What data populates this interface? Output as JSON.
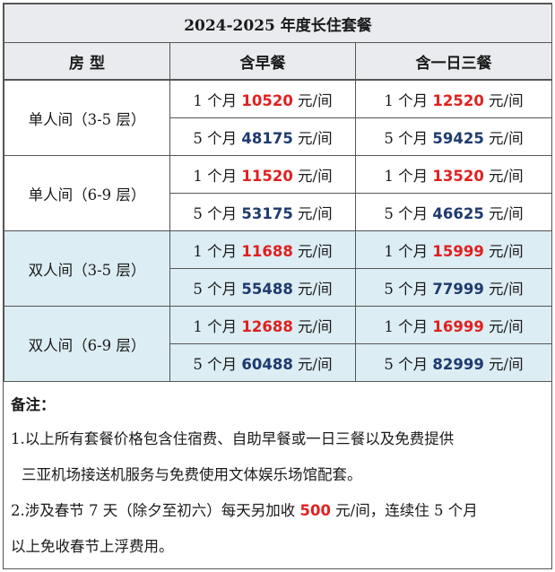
{
  "title": "2024-2025 年度长住套餐",
  "headers": {
    "room": "房 型",
    "breakfast": "含早餐",
    "three_meals": "含一日三餐"
  },
  "rows": [
    {
      "room": "单人间（3-5 层）",
      "b1_pre": "1 个月 ",
      "b1_price": "10520",
      "b1_suf": " 元/间",
      "m1_pre": "1 个月 ",
      "m1_price": "12520",
      "m1_suf": " 元/间",
      "b5_pre": "5 个月 ",
      "b5_price": "48175",
      "b5_suf": " 元/间",
      "m5_pre": "5 个月 ",
      "m5_price": "59425",
      "m5_suf": " 元/间"
    },
    {
      "room": "单人间（6-9 层）",
      "b1_pre": "1 个月 ",
      "b1_price": "11520",
      "b1_suf": " 元/间",
      "m1_pre": "1 个月 ",
      "m1_price": "13520",
      "m1_suf": " 元/间",
      "b5_pre": "5 个月 ",
      "b5_price": "53175",
      "b5_suf": " 元/间",
      "m5_pre": "5 个月 ",
      "m5_price": "46625",
      "m5_suf": " 元/间"
    },
    {
      "room": "双人间（3-5 层）",
      "b1_pre": "1 个月 ",
      "b1_price": "11688",
      "b1_suf": " 元/间",
      "m1_pre": "1 个月 ",
      "m1_price": "15999",
      "m1_suf": " 元/间",
      "b5_pre": "5 个月 ",
      "b5_price": "55488",
      "b5_suf": " 元/间",
      "m5_pre": "5 个月 ",
      "m5_price": "77999",
      "m5_suf": " 元/间"
    },
    {
      "room": "双人间（6-9 层）",
      "b1_pre": "1 个月 ",
      "b1_price": "12688",
      "b1_suf": " 元/间",
      "m1_pre": "1 个月 ",
      "m1_price": "16999",
      "m1_suf": " 元/间",
      "b5_pre": "5 个月 ",
      "b5_price": "60488",
      "b5_suf": " 元/间",
      "m5_pre": "5 个月 ",
      "m5_price": "82999",
      "m5_suf": " 元/间"
    }
  ],
  "notes": {
    "title": "备注：",
    "n1_line1": "1.以上所有套餐价格包含住宿费、自助早餐或一日三餐以及免费提供",
    "n1_line2": "三亚机场接送机服务与免费使用文体娱乐场馆配套。",
    "n2_pre": "2.涉及春节 7 天（除夕至初六）每天另加收 ",
    "n2_price": "500",
    "n2_post": " 元/间，连续住 5 个月",
    "n2_line2": "以上免收春节上浮费用。"
  },
  "colors": {
    "header_bg": "#e9ebee",
    "blue_bg": "#dcedf3",
    "red": "#e02020",
    "navy": "#1f3a6e"
  }
}
